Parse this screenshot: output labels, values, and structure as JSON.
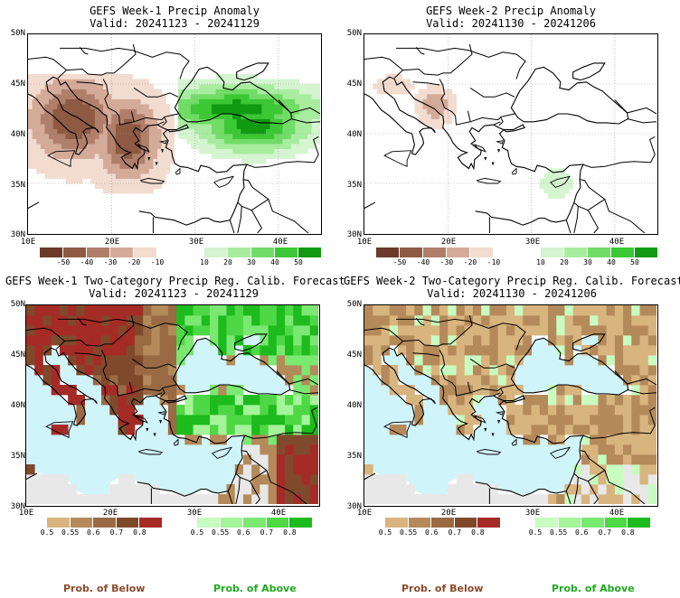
{
  "panels": [
    {
      "title": "GEFS Week-1 Precip Anomaly",
      "valid": "Valid: 20241123 - 20241129",
      "kind": "anomaly",
      "map_fill": "#ffffff",
      "yticks": [
        "50N",
        "45N",
        "40N",
        "35N",
        "30N"
      ],
      "xticks": [
        "10E",
        "20E",
        "30E",
        "40E"
      ],
      "colorbar": {
        "colors": [
          "#6b3a2a",
          "#8f5a44",
          "#b07f6b",
          "#d4aa98",
          "#f2dbcf",
          "#ffffff",
          "#ffffff",
          "#d4f5d0",
          "#a8ec9f",
          "#71dc66",
          "#3cc734",
          "#119a11"
        ],
        "labels": [
          "-50",
          "-40",
          "-30",
          "-20",
          "-10",
          "10",
          "20",
          "30",
          "40",
          "50"
        ]
      }
    },
    {
      "title": "GEFS Week-2 Precip Anomaly",
      "valid": "Valid: 20241130 - 20241206",
      "kind": "anomaly",
      "map_fill": "#ffffff",
      "yticks": [
        "50N",
        "45N",
        "40N",
        "35N",
        "30N"
      ],
      "xticks": [
        "10E",
        "20E",
        "30E",
        "40E"
      ],
      "colorbar": {
        "colors": [
          "#6b3a2a",
          "#8f5a44",
          "#b07f6b",
          "#d4aa98",
          "#f2dbcf",
          "#ffffff",
          "#ffffff",
          "#d4f5d0",
          "#a8ec9f",
          "#71dc66",
          "#3cc734",
          "#119a11"
        ],
        "labels": [
          "-50",
          "-40",
          "-30",
          "-20",
          "-10",
          "10",
          "20",
          "30",
          "40",
          "50"
        ]
      }
    },
    {
      "title": "GEFS Week-1 Two-Category Precip Reg. Calib. Forecast",
      "valid": "Valid: 20241123 - 20241129",
      "kind": "prob1",
      "map_fill": "#cff4fa",
      "yticks": [
        "50N",
        "45N",
        "40N",
        "35N",
        "30N"
      ],
      "xticks": [
        "10E",
        "20E",
        "30E",
        "40E"
      ],
      "below_bar": {
        "colors": [
          "#d8b47e",
          "#b48a5a",
          "#9a6a44",
          "#7f4a2c",
          "#a52b26"
        ],
        "labels": [
          "0.5",
          "0.55",
          "0.6",
          "0.7",
          "0.8"
        ]
      },
      "above_bar": {
        "colors": [
          "#c8fcc0",
          "#a4f49a",
          "#7be872",
          "#4fd845",
          "#1dbb1d"
        ],
        "labels": [
          "0.5",
          "0.55",
          "0.6",
          "0.7",
          "0.8"
        ]
      }
    },
    {
      "title": "GEFS Week-2 Two-Category Precip Reg. Calib. Forecast",
      "valid": "Valid: 20241130 - 20241206",
      "kind": "prob2",
      "map_fill": "#cff4fa",
      "yticks": [
        "50N",
        "45N",
        "40N",
        "35N",
        "30N"
      ],
      "xticks": [
        "10E",
        "20E",
        "30E",
        "40E"
      ],
      "below_bar": {
        "colors": [
          "#d8b47e",
          "#b48a5a",
          "#9a6a44",
          "#7f4a2c",
          "#a52b26"
        ],
        "labels": [
          "0.5",
          "0.55",
          "0.6",
          "0.7",
          "0.8"
        ]
      },
      "above_bar": {
        "colors": [
          "#c8fcc0",
          "#a4f49a",
          "#7be872",
          "#4fd845",
          "#1dbb1d"
        ],
        "labels": [
          "0.5",
          "0.55",
          "0.6",
          "0.7",
          "0.8"
        ]
      }
    }
  ],
  "legend": {
    "below_label": "Prob. of Below",
    "above_label": "Prob. of Above",
    "below_color": "#8b4a2a",
    "above_color": "#1faa1f"
  }
}
